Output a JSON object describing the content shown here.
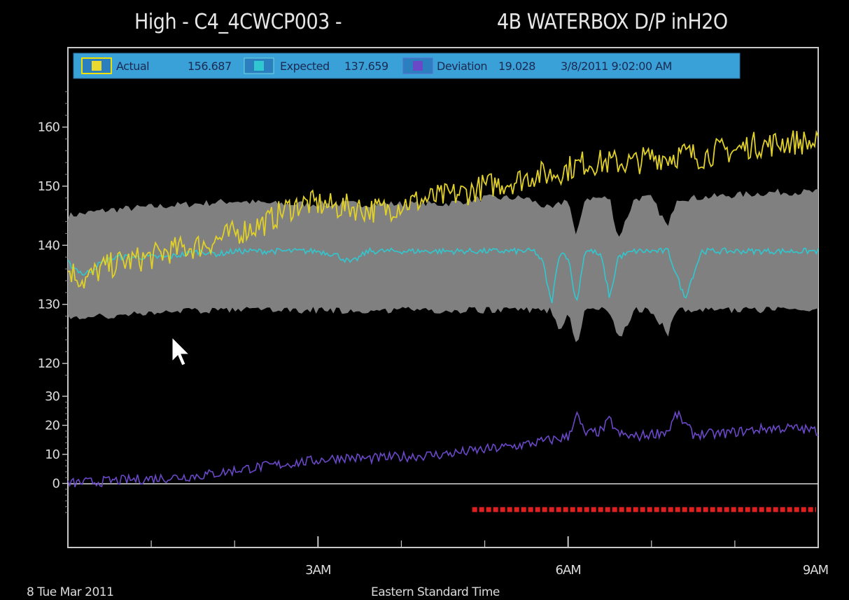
{
  "header": {
    "title_left": "High - C4_4CWCP003 -",
    "title_right": "4B WATERBOX D/P inH2O"
  },
  "legend": {
    "actual_label": "Actual",
    "actual_value": "156.687",
    "expected_label": "Expected",
    "expected_value": "137.659",
    "deviation_label": "Deviation",
    "deviation_value": "19.028",
    "timestamp": "3/8/2011 9:02:00 AM"
  },
  "footer": {
    "date_label": "8 Tue Mar 2011",
    "timezone_label": "Eastern Standard Time"
  },
  "colors": {
    "actual": "#e0d028",
    "expected": "#30c8d0",
    "deviation": "#6a48c8",
    "band": "#808080",
    "alarm": "#e02020",
    "legend_bg": "#3aa0d8"
  },
  "chart_data": [
    {
      "type": "line",
      "x_unit": "hours",
      "x_range": [
        0,
        9
      ],
      "x_ticks": [
        {
          "value": 3,
          "label": "3AM"
        },
        {
          "value": 6,
          "label": "6AM"
        },
        {
          "value": 9,
          "label": "9AM"
        }
      ],
      "ylim": [
        118,
        168
      ],
      "y_ticks": [
        120,
        130,
        140,
        150,
        160
      ],
      "series": [
        {
          "name": "Actual",
          "color": "#e0d028",
          "x": [
            0,
            0.2,
            0.4,
            0.6,
            0.8,
            1.0,
            1.2,
            1.4,
            1.6,
            1.8,
            2.0,
            2.2,
            2.4,
            2.6,
            2.8,
            3.0,
            3.2,
            3.4,
            3.6,
            3.8,
            4.0,
            4.2,
            4.4,
            4.6,
            4.8,
            5.0,
            5.2,
            5.4,
            5.6,
            5.8,
            6.0,
            6.2,
            6.4,
            6.6,
            6.8,
            7.0,
            7.2,
            7.4,
            7.6,
            7.8,
            8.0,
            8.2,
            8.4,
            8.6,
            8.8,
            9.0
          ],
          "values": [
            136,
            134,
            136,
            137,
            137.5,
            138,
            139,
            139.5,
            140,
            141,
            142,
            143,
            144,
            146,
            147,
            147,
            146.5,
            146.5,
            146,
            146,
            147,
            147.5,
            148,
            148.5,
            149,
            150,
            150.5,
            151,
            152,
            152,
            153,
            154,
            154,
            154,
            154,
            155,
            155,
            155.5,
            155,
            156,
            156,
            157,
            157,
            157.5,
            157.5,
            157
          ]
        },
        {
          "name": "Expected",
          "color": "#30c8d0",
          "x": [
            0,
            0.2,
            0.4,
            0.6,
            0.8,
            1.0,
            1.2,
            1.4,
            1.6,
            1.8,
            2.0,
            2.2,
            2.4,
            2.6,
            2.8,
            3.0,
            3.2,
            3.4,
            3.6,
            3.8,
            4.0,
            4.2,
            4.4,
            4.6,
            4.8,
            5.0,
            5.2,
            5.4,
            5.6,
            5.7,
            5.8,
            5.9,
            6.0,
            6.1,
            6.2,
            6.3,
            6.4,
            6.5,
            6.6,
            6.8,
            7.0,
            7.2,
            7.4,
            7.6,
            7.8,
            8.0,
            8.2,
            8.4,
            8.6,
            8.8,
            9.0
          ],
          "values": [
            137,
            135,
            137,
            138,
            138,
            138,
            138,
            138.5,
            139,
            138.5,
            139,
            139,
            139,
            139,
            139,
            139,
            138.5,
            137,
            139,
            139,
            139,
            139,
            139,
            139,
            139,
            139,
            139,
            139,
            139,
            137,
            130,
            139,
            138,
            130,
            139,
            139,
            138,
            131,
            138,
            139,
            139,
            139,
            131,
            139,
            139,
            139,
            139,
            139,
            139,
            139,
            139
          ]
        },
        {
          "name": "Band upper",
          "color": "#808080",
          "x": [
            0,
            0.5,
            1.0,
            1.5,
            2.0,
            2.5,
            3.0,
            3.5,
            4.0,
            4.5,
            5.0,
            5.5,
            5.8,
            6.0,
            6.1,
            6.2,
            6.5,
            6.6,
            6.8,
            7.0,
            7.2,
            7.3,
            7.5,
            8.0,
            8.5,
            9.0
          ],
          "values": [
            145,
            146,
            146.5,
            147,
            147.5,
            147,
            147,
            147,
            147,
            147,
            148,
            148,
            146,
            148,
            141,
            148,
            148,
            141,
            148,
            148,
            143,
            148,
            148,
            148.5,
            149,
            149
          ]
        },
        {
          "name": "Band lower",
          "color": "#808080",
          "x": [
            0,
            0.5,
            1.0,
            1.5,
            2.0,
            2.5,
            3.0,
            3.5,
            4.0,
            4.5,
            5.0,
            5.5,
            5.8,
            5.9,
            6.0,
            6.1,
            6.2,
            6.5,
            6.6,
            6.8,
            7.0,
            7.2,
            7.3,
            7.5,
            8.0,
            8.5,
            9.0
          ],
          "values": [
            128,
            128,
            128.5,
            129,
            129,
            129,
            129,
            129,
            129,
            129,
            129,
            129,
            129,
            125,
            129,
            123,
            129,
            129,
            124,
            129,
            129,
            125,
            129,
            129,
            129,
            129,
            129
          ]
        }
      ]
    },
    {
      "type": "line",
      "x_unit": "hours",
      "x_range": [
        0,
        9
      ],
      "ylim": [
        -10,
        30
      ],
      "y_ticks": [
        0,
        10,
        20,
        30
      ],
      "series": [
        {
          "name": "Deviation",
          "color": "#6a48c8",
          "x": [
            0,
            0.3,
            0.6,
            0.9,
            1.2,
            1.5,
            1.8,
            2.1,
            2.4,
            2.7,
            3.0,
            3.3,
            3.6,
            3.9,
            4.2,
            4.5,
            4.8,
            5.1,
            5.4,
            5.6,
            5.8,
            6.0,
            6.1,
            6.2,
            6.4,
            6.5,
            6.6,
            6.8,
            7.0,
            7.2,
            7.3,
            7.5,
            7.8,
            8.1,
            8.4,
            8.7,
            9.0
          ],
          "values": [
            0,
            0.5,
            1,
            1.5,
            2,
            2.5,
            3.5,
            5,
            6,
            7,
            8,
            9,
            8.5,
            9,
            9.5,
            10,
            11,
            12,
            13,
            14,
            15,
            16,
            24,
            17,
            18,
            22,
            17,
            16,
            17,
            18,
            24,
            17,
            17,
            18,
            19,
            19,
            18
          ]
        }
      ]
    }
  ],
  "alarm": {
    "start_hour": 4.85,
    "end_hour": 9.0
  }
}
